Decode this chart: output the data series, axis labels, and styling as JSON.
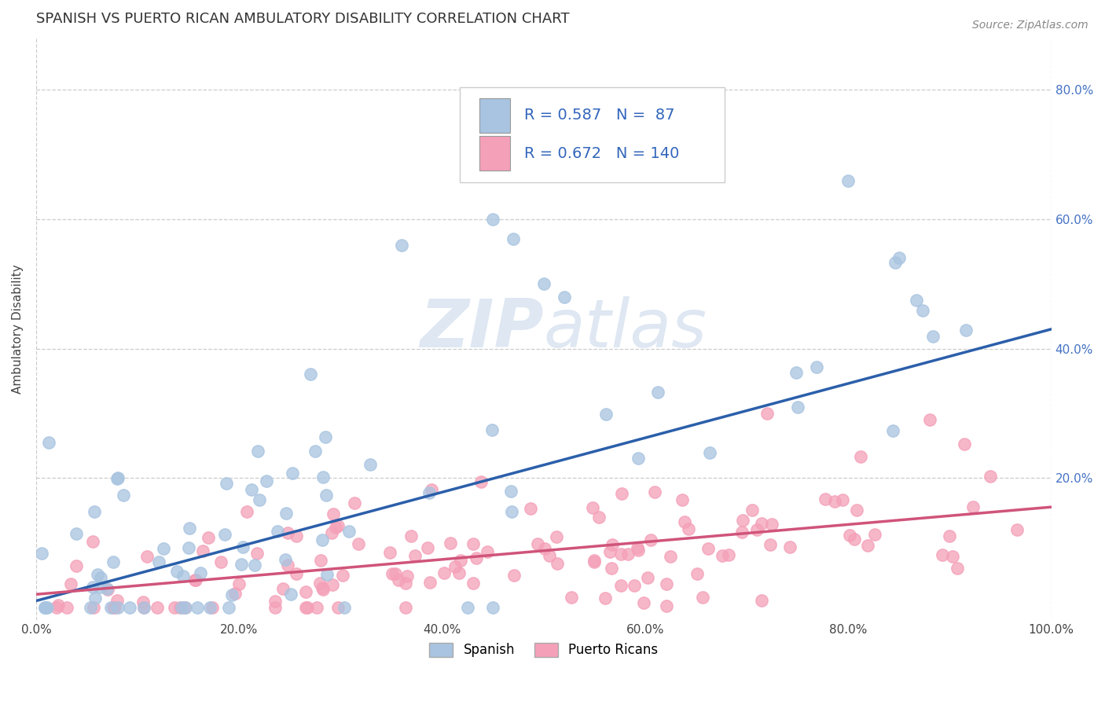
{
  "title": "SPANISH VS PUERTO RICAN AMBULATORY DISABILITY CORRELATION CHART",
  "source_text": "Source: ZipAtlas.com",
  "ylabel": "Ambulatory Disability",
  "xlim": [
    0.0,
    1.0
  ],
  "ylim": [
    -0.02,
    0.88
  ],
  "x_tick_labels": [
    "0.0%",
    "20.0%",
    "40.0%",
    "60.0%",
    "80.0%",
    "100.0%"
  ],
  "x_tick_positions": [
    0.0,
    0.2,
    0.4,
    0.6,
    0.8,
    1.0
  ],
  "y_tick_labels": [
    "20.0%",
    "40.0%",
    "60.0%",
    "80.0%"
  ],
  "y_tick_positions": [
    0.2,
    0.4,
    0.6,
    0.8
  ],
  "spanish_R": 0.587,
  "spanish_N": 87,
  "puerto_rican_R": 0.672,
  "puerto_rican_N": 140,
  "spanish_color": "#a8c4e0",
  "puerto_rican_color": "#f4a0b8",
  "spanish_line_color": "#2b5faa",
  "puerto_rican_line_color": "#d0547a",
  "background_color": "#ffffff",
  "grid_color": "#cccccc",
  "title_fontsize": 13,
  "axis_label_fontsize": 11,
  "tick_fontsize": 11,
  "legend_fontsize": 14,
  "watermark_color": "#c8d8ea",
  "source_fontsize": 10,
  "spanish_line_start_x": 0.0,
  "spanish_line_start_y": 0.01,
  "spanish_line_end_x": 1.0,
  "spanish_line_end_y": 0.43,
  "pr_line_start_x": 0.0,
  "pr_line_start_y": 0.02,
  "pr_line_end_x": 1.0,
  "pr_line_end_y": 0.155
}
